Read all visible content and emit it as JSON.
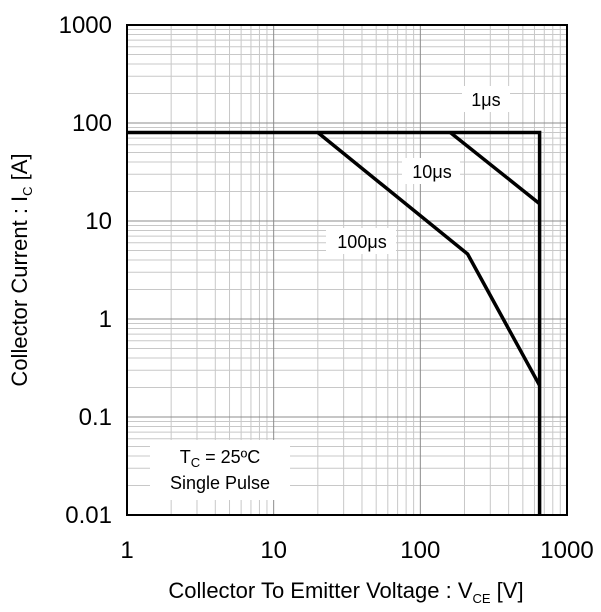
{
  "chart_data": {
    "type": "line",
    "xlabel": {
      "main": "Collector To Emitter Voltage : V",
      "sub": "CE",
      "unit": " [V]"
    },
    "ylabel": {
      "main": "Collector Current : I",
      "sub": "C",
      "unit": " [A]"
    },
    "xscale": "log",
    "yscale": "log",
    "xlim": [
      1,
      1000
    ],
    "ylim": [
      0.01,
      1000
    ],
    "grid": true,
    "x_ticks": [
      {
        "value": 1,
        "label": "1"
      },
      {
        "value": 10,
        "label": "10"
      },
      {
        "value": 100,
        "label": "100"
      },
      {
        "value": 1000,
        "label": "1000"
      }
    ],
    "y_ticks": [
      {
        "value": 0.01,
        "label": "0.01"
      },
      {
        "value": 0.1,
        "label": "0.1"
      },
      {
        "value": 1,
        "label": "1"
      },
      {
        "value": 10,
        "label": "10"
      },
      {
        "value": 100,
        "label": "100"
      },
      {
        "value": 1000,
        "label": "1000"
      }
    ],
    "series": [
      {
        "name": "1μs",
        "points": [
          [
            1,
            80
          ],
          [
            650,
            80
          ],
          [
            650,
            0.01
          ]
        ]
      },
      {
        "name": "10μs",
        "points": [
          [
            160,
            80
          ],
          [
            650,
            15
          ]
        ]
      },
      {
        "name": "100μs",
        "points": [
          [
            20,
            80
          ],
          [
            210,
            4.6
          ],
          [
            650,
            0.21
          ]
        ]
      }
    ],
    "annotations": {
      "condition_t": "T",
      "condition_sub": "C",
      "condition_value": " = 25ºC",
      "condition_line2": "Single Pulse"
    }
  }
}
